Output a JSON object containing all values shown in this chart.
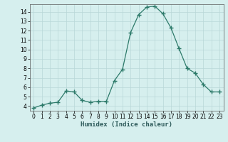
{
  "x": [
    0,
    1,
    2,
    3,
    4,
    5,
    6,
    7,
    8,
    9,
    10,
    11,
    12,
    13,
    14,
    15,
    16,
    17,
    18,
    19,
    20,
    21,
    22,
    23
  ],
  "y": [
    3.8,
    4.1,
    4.3,
    4.4,
    5.6,
    5.5,
    4.6,
    4.4,
    4.5,
    4.5,
    6.7,
    7.9,
    11.8,
    13.7,
    14.5,
    14.6,
    13.8,
    12.3,
    10.1,
    8.0,
    7.5,
    6.3,
    5.5,
    5.5
  ],
  "xlabel": "Humidex (Indice chaleur)",
  "xlim": [
    -0.5,
    23.5
  ],
  "ylim": [
    3.5,
    14.8
  ],
  "yticks": [
    4,
    5,
    6,
    7,
    8,
    9,
    10,
    11,
    12,
    13,
    14
  ],
  "xticks": [
    0,
    1,
    2,
    3,
    4,
    5,
    6,
    7,
    8,
    9,
    10,
    11,
    12,
    13,
    14,
    15,
    16,
    17,
    18,
    19,
    20,
    21,
    22,
    23
  ],
  "line_color": "#2d7a6a",
  "marker": "+",
  "marker_size": 4,
  "bg_color": "#d6efee",
  "grid_color": "#b8d8d8",
  "xlabel_fontsize": 6.5,
  "tick_fontsize": 5.5
}
